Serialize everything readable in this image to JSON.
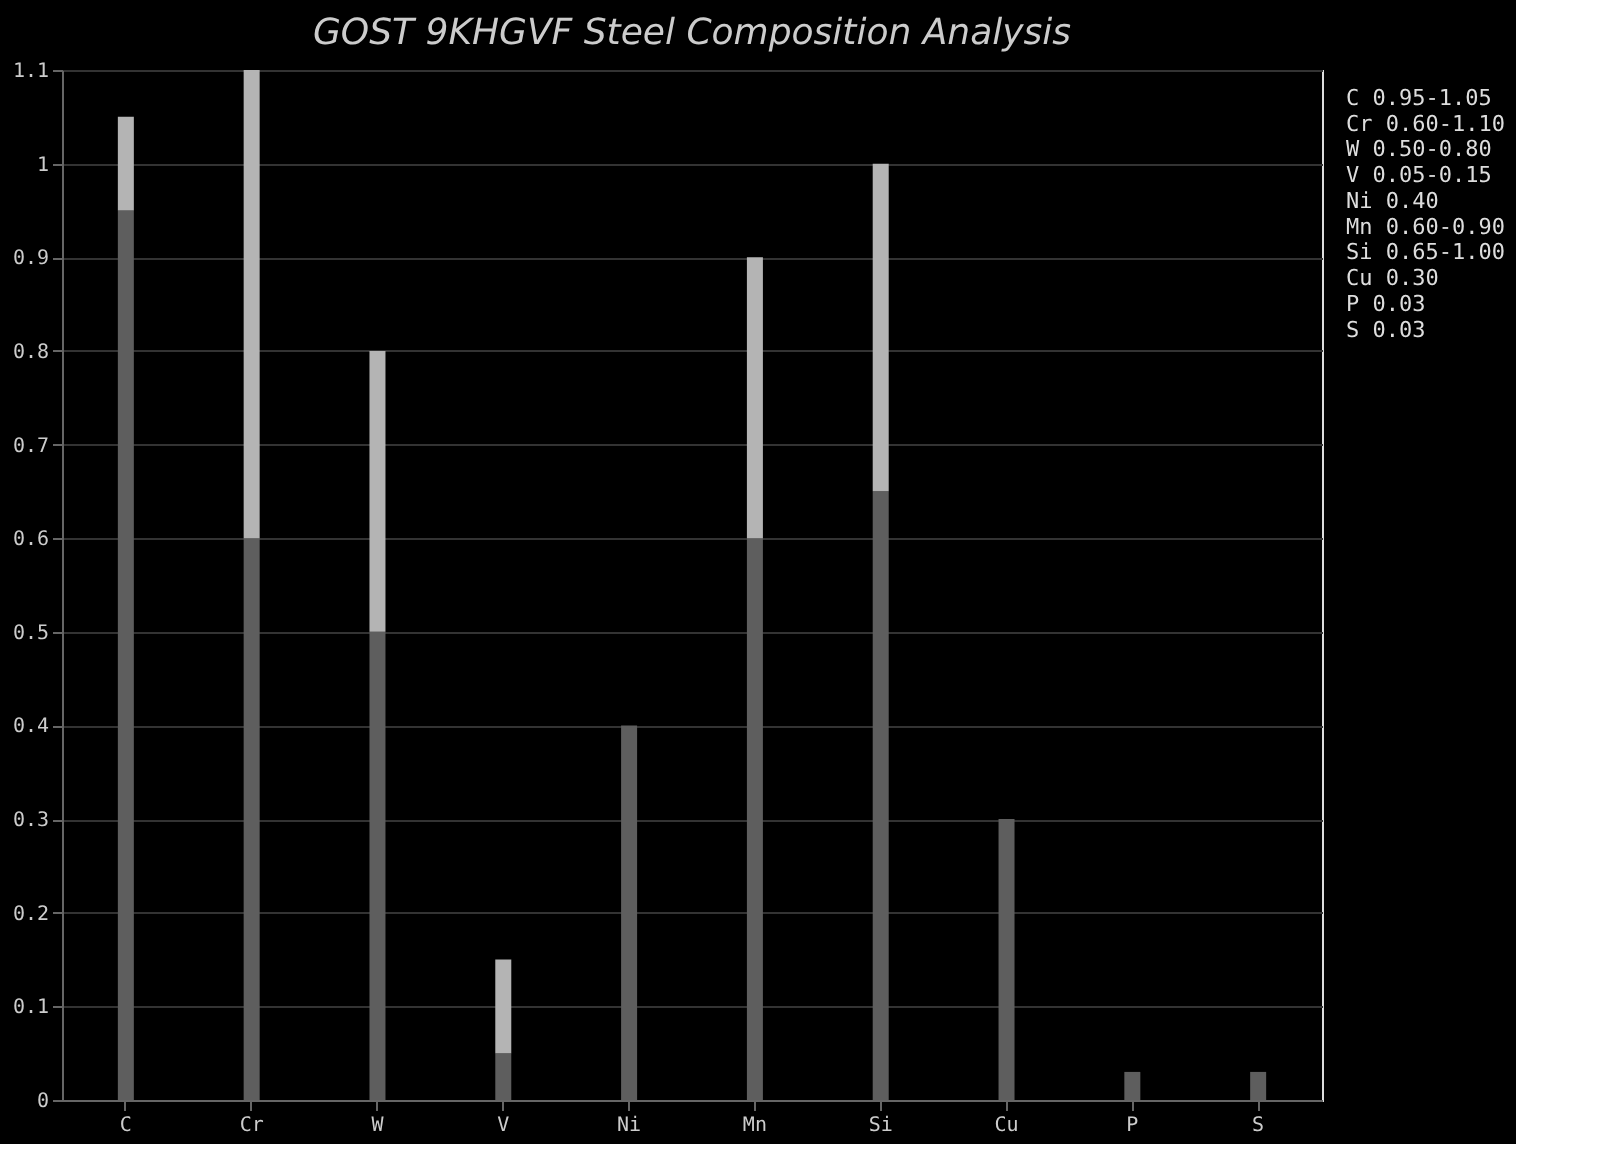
{
  "chart_data": {
    "type": "bar",
    "title": "GOST 9KHGVF Steel Composition Analysis",
    "categories": [
      "C",
      "Cr",
      "W",
      "V",
      "Ni",
      "Mn",
      "Si",
      "Cu",
      "P",
      "S"
    ],
    "stacked": true,
    "series": [
      {
        "color": "#5e5e5e",
        "values": [
          0.95,
          0.6,
          0.5,
          0.05,
          0.4,
          0.6,
          0.65,
          0.3,
          0.03,
          0.03
        ]
      },
      {
        "color": "#b4b4b4",
        "values": [
          0.1,
          0.5,
          0.3,
          0.1,
          null,
          0.3,
          0.35,
          null,
          null,
          null
        ]
      }
    ],
    "ylim": [
      0,
      1.1
    ],
    "yticks": [
      0,
      0.1,
      0.2,
      0.3,
      0.4,
      0.5,
      0.6,
      0.7,
      0.8,
      0.9,
      1,
      1.1
    ],
    "grid": "y",
    "annotations": [
      "C  0.95-1.05",
      "Cr 0.60-1.10",
      "W  0.50-0.80",
      "V  0.05-0.15",
      "Ni 0.40",
      "Mn 0.60-0.90",
      "Si 0.65-1.00",
      "Cu 0.30",
      "P  0.03",
      "S  0.03"
    ]
  }
}
